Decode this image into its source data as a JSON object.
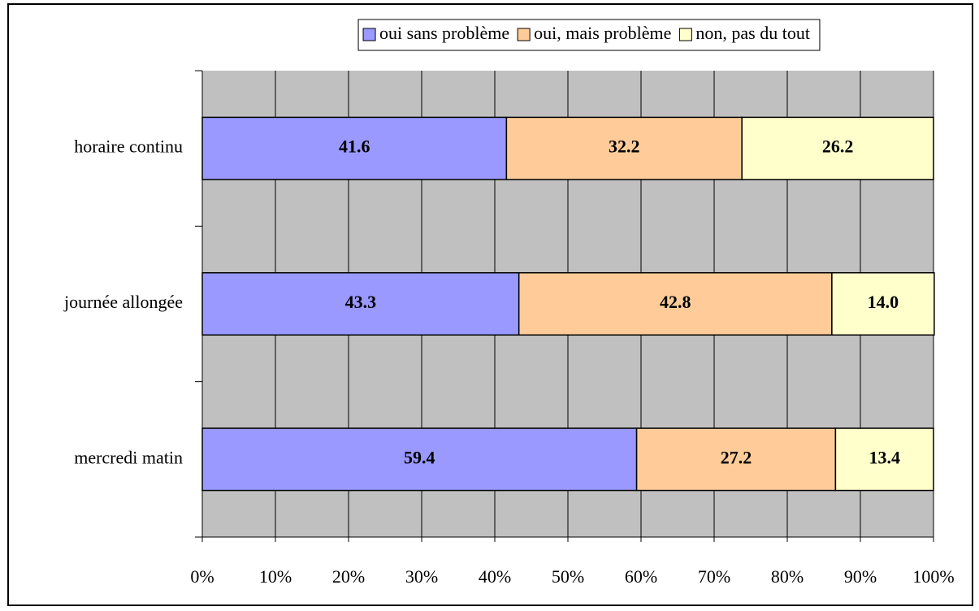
{
  "chart_data": {
    "type": "stacked-bar-horizontal",
    "categories": [
      "horaire continu",
      "journée allongée",
      "mercredi matin"
    ],
    "series": [
      {
        "name": "oui sans problème",
        "color": "#9999ff",
        "values": [
          41.6,
          43.3,
          59.4
        ],
        "value_labels": [
          "41.6",
          "43.3",
          "59.4"
        ]
      },
      {
        "name": "oui, mais problème",
        "color": "#ffcc99",
        "values": [
          32.2,
          42.8,
          27.2
        ],
        "value_labels": [
          "32.2",
          "42.8",
          "27.2"
        ]
      },
      {
        "name": "non, pas du tout",
        "color": "#ffffcc",
        "values": [
          26.2,
          14.0,
          13.4
        ],
        "value_labels": [
          "26.2",
          "14.0",
          "13.4"
        ]
      }
    ],
    "xlim": [
      0,
      100
    ],
    "xticks": [
      {
        "value": 0,
        "label": "0%"
      },
      {
        "value": 10,
        "label": "10%"
      },
      {
        "value": 20,
        "label": "20%"
      },
      {
        "value": 30,
        "label": "30%"
      },
      {
        "value": 40,
        "label": "40%"
      },
      {
        "value": 50,
        "label": "50%"
      },
      {
        "value": 60,
        "label": "60%"
      },
      {
        "value": 70,
        "label": "70%"
      },
      {
        "value": 80,
        "label": "80%"
      },
      {
        "value": 90,
        "label": "90%"
      },
      {
        "value": 100,
        "label": "100%"
      }
    ],
    "grid": true,
    "legend": "top"
  }
}
